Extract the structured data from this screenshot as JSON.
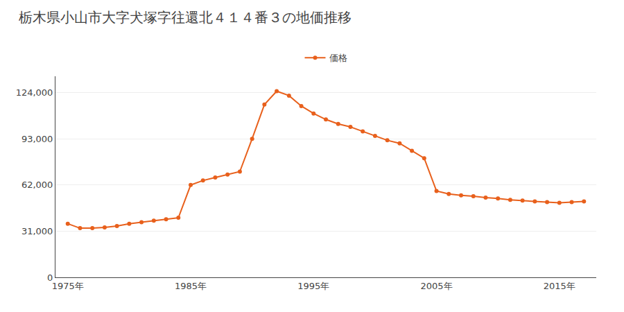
{
  "chart_data": {
    "type": "line",
    "title": "栃木県小山市大字犬塚字往還北４１４番３の地価推移",
    "x": [
      1975,
      1976,
      1977,
      1978,
      1979,
      1980,
      1981,
      1982,
      1983,
      1984,
      1985,
      1986,
      1987,
      1988,
      1989,
      1990,
      1991,
      1992,
      1993,
      1994,
      1995,
      1996,
      1997,
      1998,
      1999,
      2000,
      2001,
      2002,
      2003,
      2004,
      2005,
      2006,
      2007,
      2008,
      2009,
      2010,
      2011,
      2012,
      2013,
      2014,
      2015,
      2016,
      2017
    ],
    "series": [
      {
        "name": "価格",
        "color": "#E8601C",
        "marker": "circle",
        "values": [
          36000,
          33000,
          33000,
          33500,
          34500,
          36000,
          37000,
          38000,
          39000,
          40000,
          62000,
          65000,
          67000,
          69000,
          71000,
          93000,
          116000,
          125000,
          122000,
          115000,
          110000,
          106000,
          103000,
          101000,
          98000,
          95000,
          92000,
          90000,
          85000,
          80000,
          58000,
          56000,
          55000,
          54500,
          53500,
          53000,
          52000,
          51500,
          51000,
          50500,
          50000,
          50500,
          51000
        ]
      }
    ],
    "xlim": [
      1974,
      2018
    ],
    "xticks": [
      {
        "value": 1975,
        "label": "1975年"
      },
      {
        "value": 1985,
        "label": "1985年"
      },
      {
        "value": 1995,
        "label": "1995年"
      },
      {
        "value": 2005,
        "label": "2005年"
      },
      {
        "value": 2015,
        "label": "2015年"
      }
    ],
    "ylim": [
      0,
      135000
    ],
    "yticks": [
      0,
      {
        "value": 31000,
        "label": "31,000"
      },
      {
        "value": 62000,
        "label": "62,000"
      },
      {
        "value": 93000,
        "label": "93,000"
      },
      {
        "value": 124000,
        "label": "124,000"
      }
    ],
    "grid": "y",
    "legend": "top"
  }
}
